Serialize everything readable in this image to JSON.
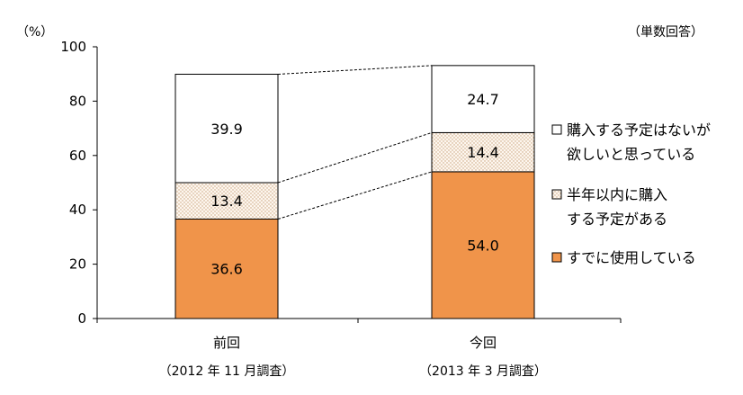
{
  "chart_data": {
    "type": "bar",
    "stacked": true,
    "unit_label": "（%）",
    "note": "（単数回答）",
    "categories": [
      "前回",
      "今回"
    ],
    "category_sublabels": [
      "（2012 年 11 月調査）",
      "（2013 年 3 月調査）"
    ],
    "ylim": [
      0,
      100
    ],
    "yticks": [
      0,
      20,
      40,
      60,
      80,
      100
    ],
    "grid": false,
    "legend_position": "right",
    "series": [
      {
        "name": "すでに使用している",
        "values": [
          36.6,
          54.0
        ],
        "labels": [
          "36.6",
          "54.0"
        ],
        "color": "#f0944a",
        "pattern": "solid"
      },
      {
        "name": "半年以内に購入する予定がある",
        "legend_lines": [
          "半年以内に購入",
          "する予定がある"
        ],
        "values": [
          13.4,
          14.4
        ],
        "labels": [
          "13.4",
          "14.4"
        ],
        "color": "#d8b48a",
        "pattern": "dots"
      },
      {
        "name": "購入する予定はないが欲しいと思っている",
        "legend_lines": [
          "購入する予定はないが",
          "欲しいと思っている"
        ],
        "values": [
          39.9,
          24.7
        ],
        "labels": [
          "39.9",
          "24.7"
        ],
        "color": "#ffffff",
        "pattern": "none"
      }
    ],
    "connector_lines": true
  }
}
